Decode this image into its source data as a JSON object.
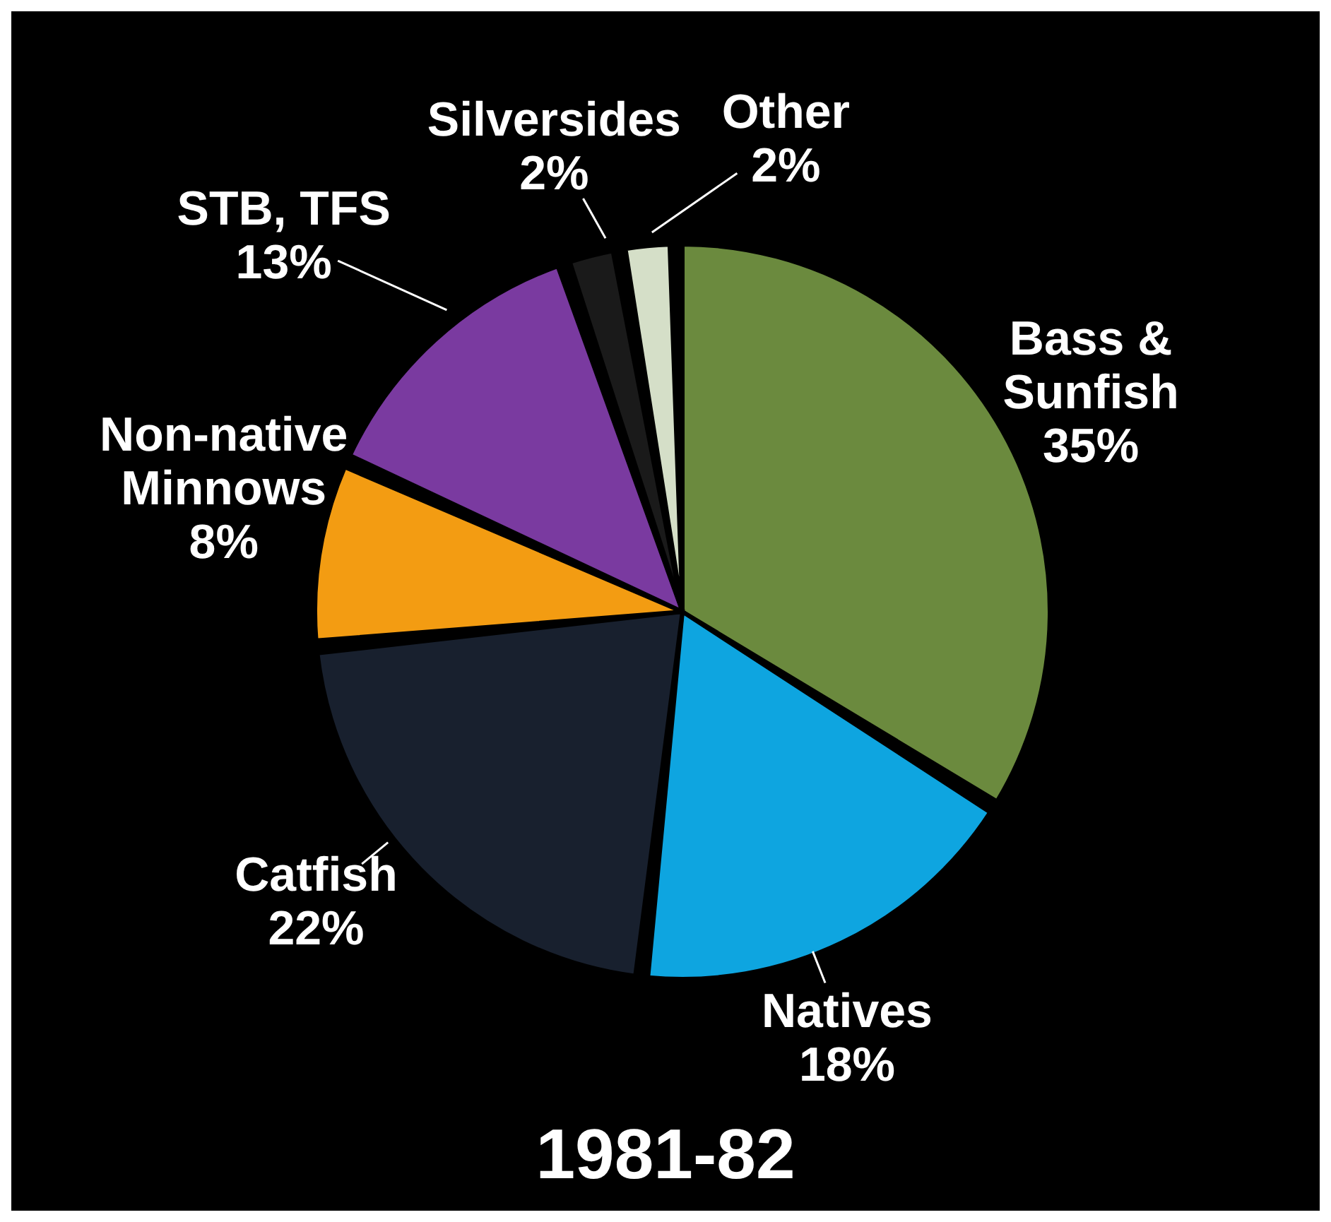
{
  "chart_data": {
    "type": "pie",
    "title": "1981-82",
    "categories": [
      "Bass & Sunfish",
      "Natives",
      "Catfish",
      "Non-native Minnows",
      "STB, TFS",
      "Silversides",
      "Other"
    ],
    "values": [
      35,
      18,
      22,
      8,
      13,
      2,
      2
    ],
    "value_labels": [
      "35%",
      "18%",
      "22%",
      "8%",
      "13%",
      "2%",
      "2%"
    ],
    "colors": [
      "#6b8a3e",
      "#0ea5e0",
      "#18202e",
      "#f39c12",
      "#7a3aa0",
      "#1a1a1a",
      "#d5dfc8"
    ]
  }
}
